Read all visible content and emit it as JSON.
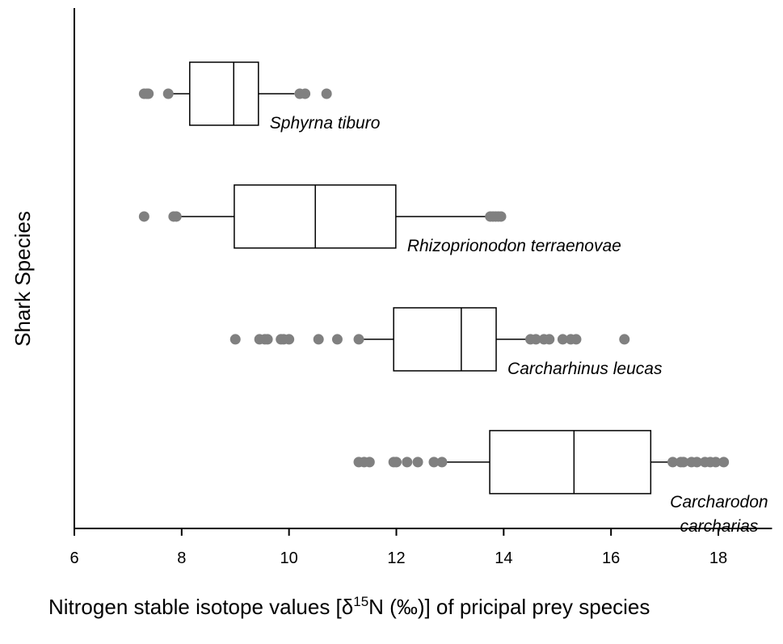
{
  "chart_data": {
    "type": "box",
    "orientation": "horizontal",
    "xlabel": [
      "Nitrogen stable isotope values [δ",
      "15",
      "N (‰)] of pricipal prey species"
    ],
    "ylabel": "Shark Species",
    "xlim": [
      6,
      19
    ],
    "xticks": [
      6,
      8,
      10,
      12,
      14,
      16,
      18
    ],
    "flier_color": "#808080",
    "categories": [
      [
        "Sphyrna tiburo"
      ],
      [
        "Rhizoprionodon terraenovae"
      ],
      [
        "Carcharhinus leucas"
      ],
      [
        "Carcharodon",
        "carcharias"
      ]
    ],
    "boxes": [
      {
        "whislo": 7.73,
        "q1": 8.15,
        "med": 8.97,
        "q3": 9.43,
        "whishi": 10.1,
        "fliers": [
          7.3,
          7.35,
          7.38,
          7.75,
          10.2,
          10.3,
          10.7
        ]
      },
      {
        "whislo": 7.88,
        "q1": 8.98,
        "med": 10.49,
        "q3": 11.99,
        "whishi": 13.73,
        "fliers": [
          7.3,
          7.85,
          7.9,
          13.75,
          13.8,
          13.85,
          13.9,
          13.95
        ]
      },
      {
        "whislo": 11.29,
        "q1": 11.95,
        "med": 13.21,
        "q3": 13.86,
        "whishi": 14.43,
        "fliers": [
          9.0,
          9.45,
          9.55,
          9.6,
          9.85,
          9.9,
          10.0,
          10.55,
          10.9,
          11.3,
          14.5,
          14.6,
          14.75,
          14.85,
          15.1,
          15.25,
          15.35,
          16.25
        ]
      },
      {
        "whislo": 12.88,
        "q1": 13.74,
        "med": 15.31,
        "q3": 16.74,
        "whishi": 17.11,
        "fliers": [
          11.3,
          11.4,
          11.5,
          11.95,
          12.0,
          12.2,
          12.4,
          12.7,
          12.85,
          17.15,
          17.3,
          17.35,
          17.5,
          17.6,
          17.75,
          17.85,
          17.95,
          18.1
        ]
      }
    ]
  }
}
